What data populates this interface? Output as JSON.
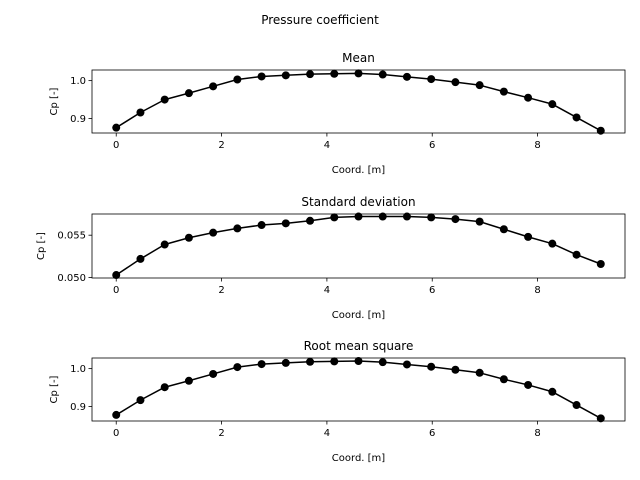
{
  "figure": {
    "suptitle": "Pressure coefficient"
  },
  "chart_data": [
    {
      "type": "line",
      "title": "Mean",
      "xlabel": "Coord. [m]",
      "ylabel": "Cp [-]",
      "xlim": [
        -0.46,
        9.66
      ],
      "ylim": [
        0.862,
        1.028
      ],
      "xticks": [
        0,
        2,
        4,
        6,
        8
      ],
      "xtick_labels": [
        "0",
        "2",
        "4",
        "6",
        "8"
      ],
      "yticks": [
        0.9,
        1.0
      ],
      "ytick_labels": [
        "0.9",
        "1.0"
      ],
      "marker": "circle",
      "color": "#000000",
      "series": [
        {
          "x": [
            0.0,
            0.46,
            0.92,
            1.38,
            1.84,
            2.3,
            2.76,
            3.22,
            3.68,
            4.14,
            4.6,
            5.06,
            5.52,
            5.98,
            6.44,
            6.9,
            7.36,
            7.82,
            8.28,
            8.74,
            9.2
          ],
          "values": [
            0.876,
            0.916,
            0.95,
            0.967,
            0.985,
            1.003,
            1.011,
            1.014,
            1.017,
            1.018,
            1.019,
            1.016,
            1.01,
            1.004,
            0.996,
            0.988,
            0.971,
            0.955,
            0.938,
            0.903,
            0.868
          ]
        }
      ]
    },
    {
      "type": "line",
      "title": "Standard deviation",
      "xlabel": "Coord. [m]",
      "ylabel": "Cp [-]",
      "xlim": [
        -0.46,
        9.66
      ],
      "ylim": [
        0.04995,
        0.0575
      ],
      "xticks": [
        0,
        2,
        4,
        6,
        8
      ],
      "xtick_labels": [
        "0",
        "2",
        "4",
        "6",
        "8"
      ],
      "yticks": [
        0.05,
        0.055
      ],
      "ytick_labels": [
        "0.050",
        "0.055"
      ],
      "marker": "circle",
      "color": "#000000",
      "series": [
        {
          "x": [
            0.0,
            0.46,
            0.92,
            1.38,
            1.84,
            2.3,
            2.76,
            3.22,
            3.68,
            4.14,
            4.6,
            5.06,
            5.52,
            5.98,
            6.44,
            6.9,
            7.36,
            7.82,
            8.28,
            8.74,
            9.2
          ],
          "values": [
            0.0503,
            0.0522,
            0.0539,
            0.0547,
            0.0553,
            0.0558,
            0.0562,
            0.0564,
            0.0567,
            0.0571,
            0.0572,
            0.0572,
            0.0572,
            0.0571,
            0.0569,
            0.0566,
            0.0557,
            0.0548,
            0.054,
            0.0527,
            0.0516
          ]
        }
      ]
    },
    {
      "type": "line",
      "title": "Root mean square",
      "xlabel": "Coord. [m]",
      "ylabel": "Cp [-]",
      "xlim": [
        -0.46,
        9.66
      ],
      "ylim": [
        0.862,
        1.028
      ],
      "xticks": [
        0,
        2,
        4,
        6,
        8
      ],
      "xtick_labels": [
        "0",
        "2",
        "4",
        "6",
        "8"
      ],
      "yticks": [
        0.9,
        1.0
      ],
      "ytick_labels": [
        "0.9",
        "1.0"
      ],
      "marker": "circle",
      "color": "#000000",
      "series": [
        {
          "x": [
            0.0,
            0.46,
            0.92,
            1.38,
            1.84,
            2.3,
            2.76,
            3.22,
            3.68,
            4.14,
            4.6,
            5.06,
            5.52,
            5.98,
            6.44,
            6.9,
            7.36,
            7.82,
            8.28,
            8.74,
            9.2
          ],
          "values": [
            0.878,
            0.917,
            0.951,
            0.968,
            0.986,
            1.004,
            1.012,
            1.015,
            1.018,
            1.019,
            1.02,
            1.017,
            1.011,
            1.005,
            0.997,
            0.989,
            0.972,
            0.957,
            0.939,
            0.904,
            0.869
          ]
        }
      ]
    }
  ]
}
